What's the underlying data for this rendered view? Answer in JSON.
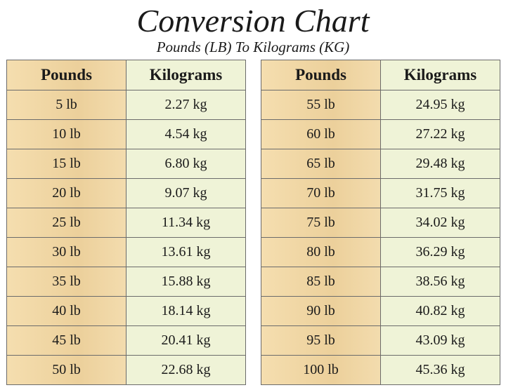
{
  "title": "Conversion Chart",
  "subtitle": "Pounds (LB) To Kilograms (KG)",
  "tables": [
    {
      "headers": [
        "Pounds",
        "Kilograms"
      ],
      "rows": [
        [
          "5 lb",
          "2.27 kg"
        ],
        [
          "10 lb",
          "4.54 kg"
        ],
        [
          "15 lb",
          "6.80 kg"
        ],
        [
          "20 lb",
          "9.07 kg"
        ],
        [
          "25 lb",
          "11.34 kg"
        ],
        [
          "30 lb",
          "13.61 kg"
        ],
        [
          "35 lb",
          "15.88 kg"
        ],
        [
          "40 lb",
          "18.14 kg"
        ],
        [
          "45 lb",
          "20.41 kg"
        ],
        [
          "50 lb",
          "22.68 kg"
        ]
      ]
    },
    {
      "headers": [
        "Pounds",
        "Kilograms"
      ],
      "rows": [
        [
          "55 lb",
          "24.95 kg"
        ],
        [
          "60 lb",
          "27.22 kg"
        ],
        [
          "65 lb",
          "29.48 kg"
        ],
        [
          "70 lb",
          "31.75 kg"
        ],
        [
          "75 lb",
          "34.02 kg"
        ],
        [
          "80 lb",
          "36.29 kg"
        ],
        [
          "85 lb",
          "38.56 kg"
        ],
        [
          "90 lb",
          "40.82 kg"
        ],
        [
          "95 lb",
          "43.09 kg"
        ],
        [
          "100 lb",
          "45.36 kg"
        ]
      ]
    }
  ]
}
